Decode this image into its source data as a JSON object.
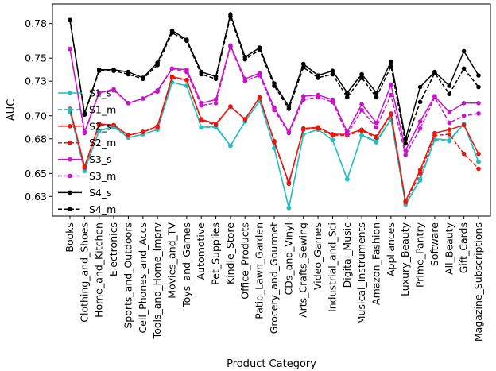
{
  "chart_data": {
    "type": "line",
    "xlabel": "Product Category",
    "ylabel": "AUC",
    "ylim": [
      0.613,
      0.797
    ],
    "yticks": [
      0.63,
      0.65,
      0.68,
      0.7,
      0.73,
      0.75,
      0.78
    ],
    "ytick_labels": [
      "0.63",
      "0.65",
      "0.68",
      "0.70",
      "0.73",
      "0.75",
      "0.78"
    ],
    "legend_position": "left-middle",
    "grid": false,
    "categories": [
      "Books",
      "Clothing_and_Shoes",
      "Home_and_Kitchen",
      "Electronics",
      "Sports_and_Outdoors",
      "Cell_Phones_and_Accs",
      "Tools_and_Home_Imprv",
      "Movies_and_TV",
      "Toys_and_Games",
      "Automotive",
      "Pet_Supplies",
      "Kindle_Store",
      "Office_Products",
      "Patio_Lawn_Garden",
      "Grocery_and_Gourmet",
      "CDs_and_Vinyl",
      "Arts_Crafts_Sewing",
      "Video_Games",
      "Industrial_and_Sci",
      "Digital_Music",
      "Musical_Instruments",
      "Amazon_Fashion",
      "Appliances",
      "Luxury_Beauty",
      "Prime_Pantry",
      "Software",
      "All_Beauty",
      "Gift_Cards",
      "Magazine_Subscriptions"
    ],
    "series": [
      {
        "name": "S1_s",
        "color": "#1fbfc2",
        "dashed": false,
        "values": [
          0.704,
          0.653,
          0.687,
          0.691,
          0.681,
          0.684,
          0.688,
          0.729,
          0.726,
          0.69,
          0.691,
          0.674,
          0.695,
          0.713,
          0.672,
          0.62,
          0.684,
          0.688,
          0.679,
          0.645,
          0.683,
          0.678,
          0.697,
          0.623,
          0.645,
          0.68,
          0.679,
          0.693,
          0.66
        ]
      },
      {
        "name": "S1_m",
        "color": "#1fbfc2",
        "dashed": true,
        "values": [
          0.703,
          0.652,
          0.687,
          0.69,
          0.681,
          0.684,
          0.688,
          0.729,
          0.726,
          0.69,
          0.69,
          0.674,
          0.695,
          0.713,
          0.672,
          0.62,
          0.684,
          0.688,
          0.679,
          0.645,
          0.683,
          0.677,
          0.697,
          0.623,
          0.644,
          0.679,
          0.678,
          0.693,
          0.66
        ]
      },
      {
        "name": "S2_s",
        "color": "#e8170f",
        "dashed": false,
        "values": [
          0.706,
          0.656,
          0.693,
          0.692,
          0.683,
          0.686,
          0.691,
          0.734,
          0.731,
          0.697,
          0.693,
          0.708,
          0.697,
          0.716,
          0.678,
          0.642,
          0.689,
          0.69,
          0.684,
          0.684,
          0.688,
          0.682,
          0.702,
          0.626,
          0.653,
          0.685,
          0.688,
          0.692,
          0.667
        ]
      },
      {
        "name": "S2_m",
        "color": "#e8170f",
        "dashed": true,
        "values": [
          0.706,
          0.655,
          0.692,
          0.692,
          0.683,
          0.686,
          0.69,
          0.733,
          0.731,
          0.696,
          0.692,
          0.708,
          0.697,
          0.716,
          0.677,
          0.641,
          0.688,
          0.689,
          0.683,
          0.683,
          0.687,
          0.681,
          0.701,
          0.625,
          0.65,
          0.683,
          0.684,
          0.667,
          0.654
        ]
      },
      {
        "name": "S3_s",
        "color": "#c814c8",
        "dashed": false,
        "values": [
          0.758,
          0.686,
          0.72,
          0.723,
          0.711,
          0.715,
          0.722,
          0.741,
          0.74,
          0.711,
          0.714,
          0.761,
          0.732,
          0.737,
          0.707,
          0.686,
          0.717,
          0.718,
          0.714,
          0.686,
          0.71,
          0.694,
          0.727,
          0.67,
          0.695,
          0.717,
          0.703,
          0.711,
          0.711
        ]
      },
      {
        "name": "S3_m",
        "color": "#c814c8",
        "dashed": true,
        "values": [
          0.758,
          0.685,
          0.72,
          0.722,
          0.711,
          0.715,
          0.721,
          0.741,
          0.738,
          0.709,
          0.711,
          0.76,
          0.73,
          0.735,
          0.705,
          0.685,
          0.714,
          0.716,
          0.712,
          0.684,
          0.705,
          0.69,
          0.718,
          0.666,
          0.689,
          0.716,
          0.694,
          0.7,
          0.702
        ]
      },
      {
        "name": "S4_s",
        "color": "#000000",
        "dashed": false,
        "values": [
          0.783,
          0.702,
          0.74,
          0.74,
          0.738,
          0.733,
          0.746,
          0.774,
          0.766,
          0.738,
          0.734,
          0.788,
          0.751,
          0.759,
          0.728,
          0.708,
          0.745,
          0.735,
          0.739,
          0.72,
          0.736,
          0.72,
          0.747,
          0.68,
          0.725,
          0.738,
          0.726,
          0.756,
          0.735
        ]
      },
      {
        "name": "S4_m",
        "color": "#000000",
        "dashed": true,
        "values": [
          0.783,
          0.701,
          0.739,
          0.739,
          0.736,
          0.732,
          0.744,
          0.772,
          0.765,
          0.736,
          0.732,
          0.786,
          0.749,
          0.757,
          0.726,
          0.706,
          0.742,
          0.733,
          0.736,
          0.716,
          0.733,
          0.716,
          0.743,
          0.676,
          0.712,
          0.737,
          0.719,
          0.741,
          0.725
        ]
      }
    ]
  }
}
